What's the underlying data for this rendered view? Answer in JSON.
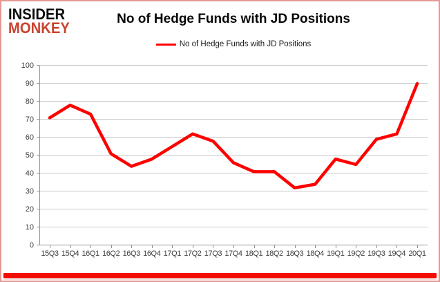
{
  "logo": {
    "line1": "INSIDER",
    "line2": "MONKEY"
  },
  "header": {
    "title": "No of Hedge Funds with JD Positions"
  },
  "legend": {
    "label": "No of Hedge Funds with JD Positions"
  },
  "colors": {
    "line": "#fe0000",
    "logo_monkey_red": "#c9432f",
    "logo_insider_black": "#0d0d0d",
    "gridline": "#c8c8c8",
    "axis": "#919191",
    "frame_border": "#e49893",
    "bottom_bar": "#f30b00",
    "axis_label": "#3d3d3d"
  },
  "chart_data": {
    "type": "line",
    "title": "No of Hedge Funds with JD Positions",
    "categories": [
      "15Q3",
      "15Q4",
      "16Q1",
      "16Q2",
      "16Q3",
      "16Q4",
      "17Q1",
      "17Q2",
      "17Q3",
      "17Q4",
      "18Q1",
      "18Q2",
      "18Q3",
      "18Q4",
      "19Q1",
      "19Q2",
      "19Q3",
      "19Q4",
      "20Q1"
    ],
    "series": [
      {
        "name": "No of Hedge Funds with JD Positions",
        "values": [
          71,
          78,
          73,
          51,
          44,
          48,
          55,
          62,
          58,
          46,
          41,
          41,
          32,
          34,
          48,
          45,
          59,
          62,
          90
        ]
      }
    ],
    "xlabel": "",
    "ylabel": "",
    "ylim": [
      0,
      100
    ],
    "ytick_step": 10,
    "grid": true,
    "legend_position": "top"
  }
}
